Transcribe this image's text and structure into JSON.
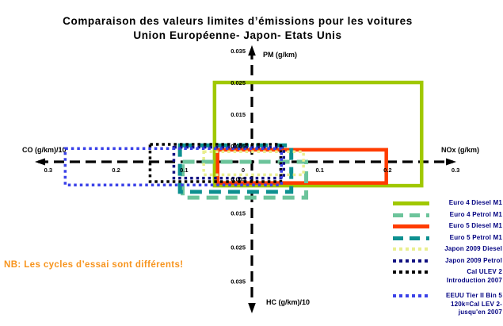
{
  "title": {
    "line1": "Comparaison des valeurs limites d’émissions pour les voitures",
    "line2": "Union Européenne- Japon- Etats Unis"
  },
  "note": "NB: Les cycles d’essai sont différents!",
  "chart_data": {
    "type": "quadrant_rectangles",
    "description": "Four-quadrant comparison of car emission limits. Each rectangle's right edge = NOx limit (g/km), top edge = PM limit (g/km), left edge = CO/10 (g/km), bottom edge = HC/10 (g/km).",
    "axes": {
      "up": {
        "label": "PM (g/km)",
        "ticks": [
          0.005,
          0.015,
          0.025,
          0.035
        ],
        "max": 0.04
      },
      "down": {
        "label": "HC (g/km)/10",
        "ticks": [
          0.005,
          0.015,
          0.025,
          0.035
        ],
        "max": 0.04
      },
      "left": {
        "label": "CO (g/km)/10",
        "ticks": [
          0.3,
          0.2,
          0.1
        ],
        "zero_label": "0",
        "max": 0.32
      },
      "right": {
        "label": "NOx (g/km)",
        "ticks": [
          0.1,
          0.2,
          0.3
        ],
        "max": 0.32
      }
    },
    "series": [
      {
        "name": "Euro 4 Diesel M1",
        "color": "#A0C800",
        "line_style": "solid",
        "co_div10": 0.055,
        "pm": 0.025,
        "nox": 0.25,
        "hc_div10": 0.007
      },
      {
        "name": "Euro 5 Diesel M1",
        "color": "#FF3C00",
        "line_style": "solid",
        "co_div10": 0.0505,
        "pm": 0.0038,
        "nox": 0.198,
        "hc_div10": 0.0062
      },
      {
        "name": "Euro 4 Petrol M1",
        "color": "#6CC49B",
        "line_style": "dashed",
        "co_div10": 0.102,
        "pm": 0.0,
        "nox": 0.08,
        "hc_div10": 0.0105
      },
      {
        "name": "Euro 5 Petrol M1",
        "color": "#0D9090",
        "line_style": "dashed",
        "co_div10": 0.106,
        "pm": 0.0052,
        "nox": 0.058,
        "hc_div10": 0.0088
      },
      {
        "name": "Japon 2009 Diesel",
        "color": "#E9EE8E",
        "line_style": "dotted",
        "co_div10": 0.071,
        "pm": 0.0032,
        "nox": 0.076,
        "hc_div10": 0.0038
      },
      {
        "name": "Japon 2009 Petrol",
        "color": "#101080",
        "line_style": "dotted",
        "co_div10": 0.115,
        "pm": 0.0046,
        "nox": 0.047,
        "hc_div10": 0.0048
      },
      {
        "name": "Cal ULEV 2",
        "color": "#000000",
        "line_style": "dotted",
        "co_div10": 0.15,
        "pm": 0.0055,
        "nox": 0.0425,
        "hc_div10": 0.0058
      },
      {
        "name": "EEUU Tier II Bin 5",
        "color": "#3A41E8",
        "line_style": "dotted",
        "co_div10": 0.275,
        "pm": 0.0042,
        "nox": 0.0435,
        "hc_div10": 0.0068
      }
    ]
  },
  "legend": {
    "items": [
      {
        "lines": [
          "Euro 4 Diesel M1"
        ],
        "color": "#A0C800",
        "line_style": "solid"
      },
      {
        "lines": [
          "Euro 4 Petrol M1"
        ],
        "color": "#6CC49B",
        "line_style": "dashed"
      },
      {
        "lines": [
          "Euro 5 Diesel M1"
        ],
        "color": "#FF3C00",
        "line_style": "solid"
      },
      {
        "lines": [
          "Euro 5 Petrol M1"
        ],
        "color": "#0D9090",
        "line_style": "dashed"
      },
      {
        "lines": [
          "Japon 2009 Diesel"
        ],
        "color": "#E9EE8E",
        "line_style": "dotted"
      },
      {
        "lines": [
          "Japon 2009 Petrol"
        ],
        "color": "#101080",
        "line_style": "dotted"
      },
      {
        "lines": [
          "Cal ULEV 2",
          "Introduction  2007"
        ],
        "color": "#000000",
        "line_style": "dotted"
      },
      {
        "lines": [
          "EEUU Tier II Bin 5",
          "120k=Cal LEV 2-",
          "jusqu'en 2007"
        ],
        "color": "#3A41E8",
        "line_style": "dotted",
        "extra_gap": true
      }
    ]
  },
  "colors": {
    "note_orange": "#F7941D",
    "legend_text_navy": "#000080",
    "axis_black": "#000000"
  }
}
